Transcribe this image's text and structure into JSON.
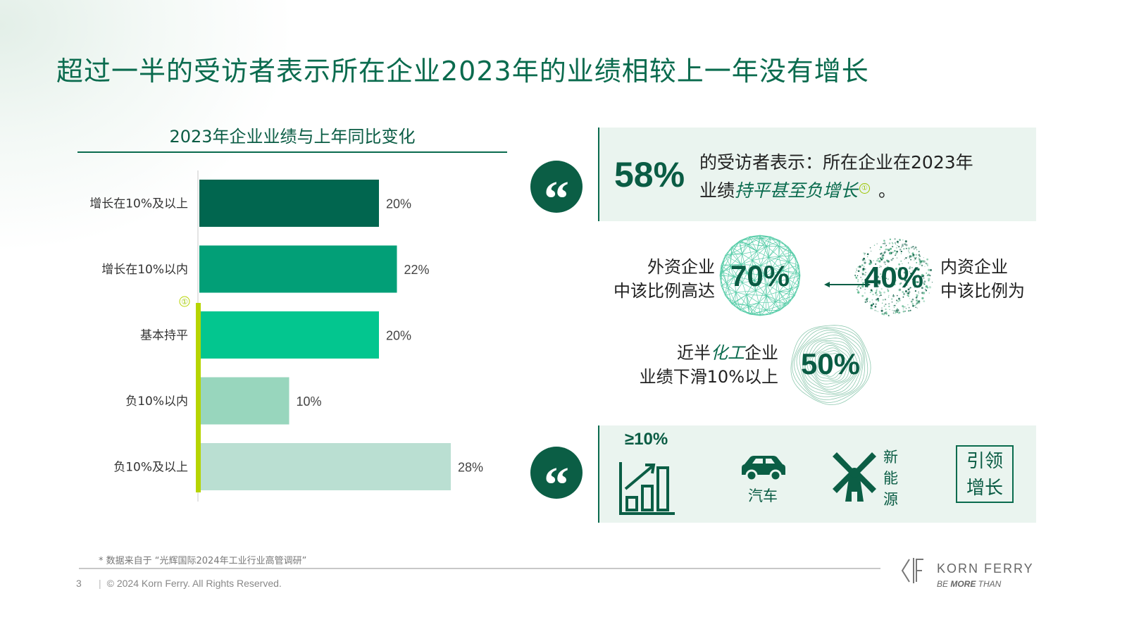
{
  "title": "超过一半的受访者表示所在企业2023年的业绩相较上一年没有增长",
  "chart_data": {
    "type": "bar",
    "orientation": "horizontal",
    "title": "2023年企业业绩与上年同比变化",
    "categories": [
      "增长在10%及以上",
      "增长在10%以内",
      "基本持平",
      "负10%以内",
      "负10%及以上"
    ],
    "values": [
      20,
      22,
      20,
      10,
      28
    ],
    "value_labels": [
      "20%",
      "22%",
      "20%",
      "10%",
      "28%"
    ],
    "colors": [
      "#01664f",
      "#029f77",
      "#03c68f",
      "#98d6bd",
      "#badfd2"
    ],
    "xlim": [
      0,
      30
    ],
    "grid": false,
    "bracket_note": "①",
    "bracket_color": "#b6d400"
  },
  "highlight": {
    "percent": "58%",
    "line1": "的受访者表示：所在企业在2023年",
    "line2_prefix": "业绩",
    "line2_emphasis": "持平甚至负增长",
    "note_marker": "①",
    "line2_suffix": " 。"
  },
  "foreign": {
    "line1": "外资企业",
    "line2": "中该比例高达",
    "percent": "70%"
  },
  "domestic": {
    "line1": "内资企业",
    "line2": "中该比例为",
    "percent": "40%"
  },
  "chemical": {
    "line1_prefix": "近半",
    "line1_emphasis": "化工",
    "line1_suffix": "企业",
    "line2": "业绩下滑10%以上",
    "percent": "50%"
  },
  "growth": {
    "threshold": "≥10%",
    "auto_label": "汽车",
    "energy_label": [
      "新",
      "能",
      "源"
    ],
    "lead_label": [
      "引领",
      "增长"
    ]
  },
  "icons": {
    "quote": "quote-icon",
    "bar_growth": "bar-chart-growth-icon",
    "car": "car-icon",
    "windmill": "windmill-icon",
    "arrow": "double-arrow-icon"
  },
  "quote_mark": "“",
  "footnote": "* 数据来自于 “光辉国际2024年工业行业高管调研”",
  "page_number": "3",
  "copyright": "© 2024 Korn Ferry. All Rights Reserved.",
  "brand": {
    "name": "KORN FERRY",
    "tag_prefix": "BE ",
    "tag_bold": "MORE",
    "tag_suffix": " THAN"
  },
  "colors": {
    "primary": "#0a6b4e",
    "dark": "#0b5e45",
    "panel": "#eaf4ef",
    "accent": "#b6d400"
  }
}
